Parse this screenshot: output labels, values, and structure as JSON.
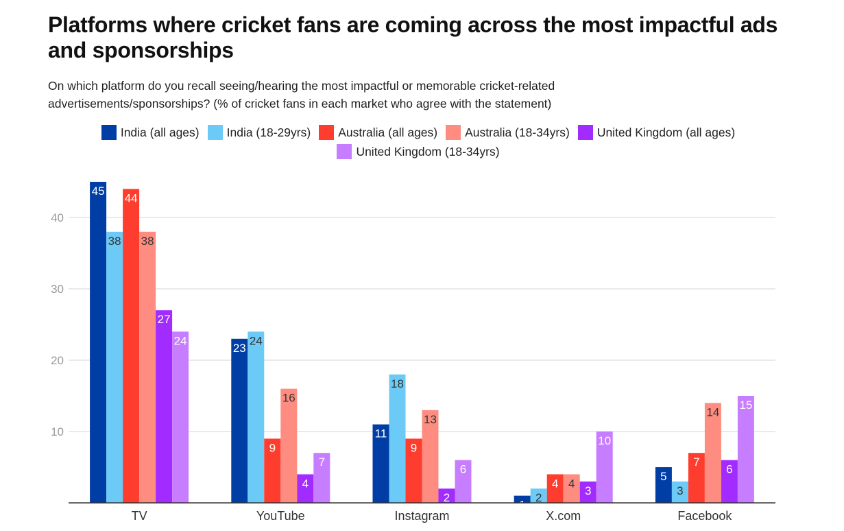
{
  "chart_data": {
    "type": "bar",
    "title": "Platforms where cricket fans are coming across the most impactful ads and sponsorships",
    "subtitle": "On which platform do you recall seeing/hearing the most impactful or memorable cricket-related advertisements/sponsorships? (% of cricket fans in each market who agree with the statement)",
    "categories": [
      "TV",
      "YouTube",
      "Instagram",
      "X.com",
      "Facebook"
    ],
    "series": [
      {
        "name": "India (all ages)",
        "color": "#003da5",
        "label_color": "#ffffff",
        "values": [
          45,
          23,
          11,
          1,
          5
        ]
      },
      {
        "name": "India (18-29yrs)",
        "color": "#6ccaf6",
        "label_color": "#333333",
        "values": [
          38,
          24,
          18,
          2,
          3
        ]
      },
      {
        "name": "Australia (all ages)",
        "color": "#ff3d2e",
        "label_color": "#ffffff",
        "values": [
          44,
          9,
          9,
          4,
          7
        ]
      },
      {
        "name": "Australia (18-34yrs)",
        "color": "#ff8c80",
        "label_color": "#333333",
        "values": [
          38,
          16,
          13,
          4,
          14
        ]
      },
      {
        "name": "United Kingdom (all ages)",
        "color": "#a22cff",
        "label_color": "#ffffff",
        "values": [
          27,
          4,
          2,
          3,
          6
        ]
      },
      {
        "name": "United Kingdom (18-34yrs)",
        "color": "#c77dff",
        "label_color": "#ffffff",
        "values": [
          24,
          7,
          6,
          10,
          15
        ]
      }
    ],
    "yticks": [
      10,
      20,
      30,
      40
    ],
    "ylim": [
      0,
      45
    ],
    "grid": true,
    "legend_position": "top",
    "xlabel": "",
    "ylabel": ""
  }
}
